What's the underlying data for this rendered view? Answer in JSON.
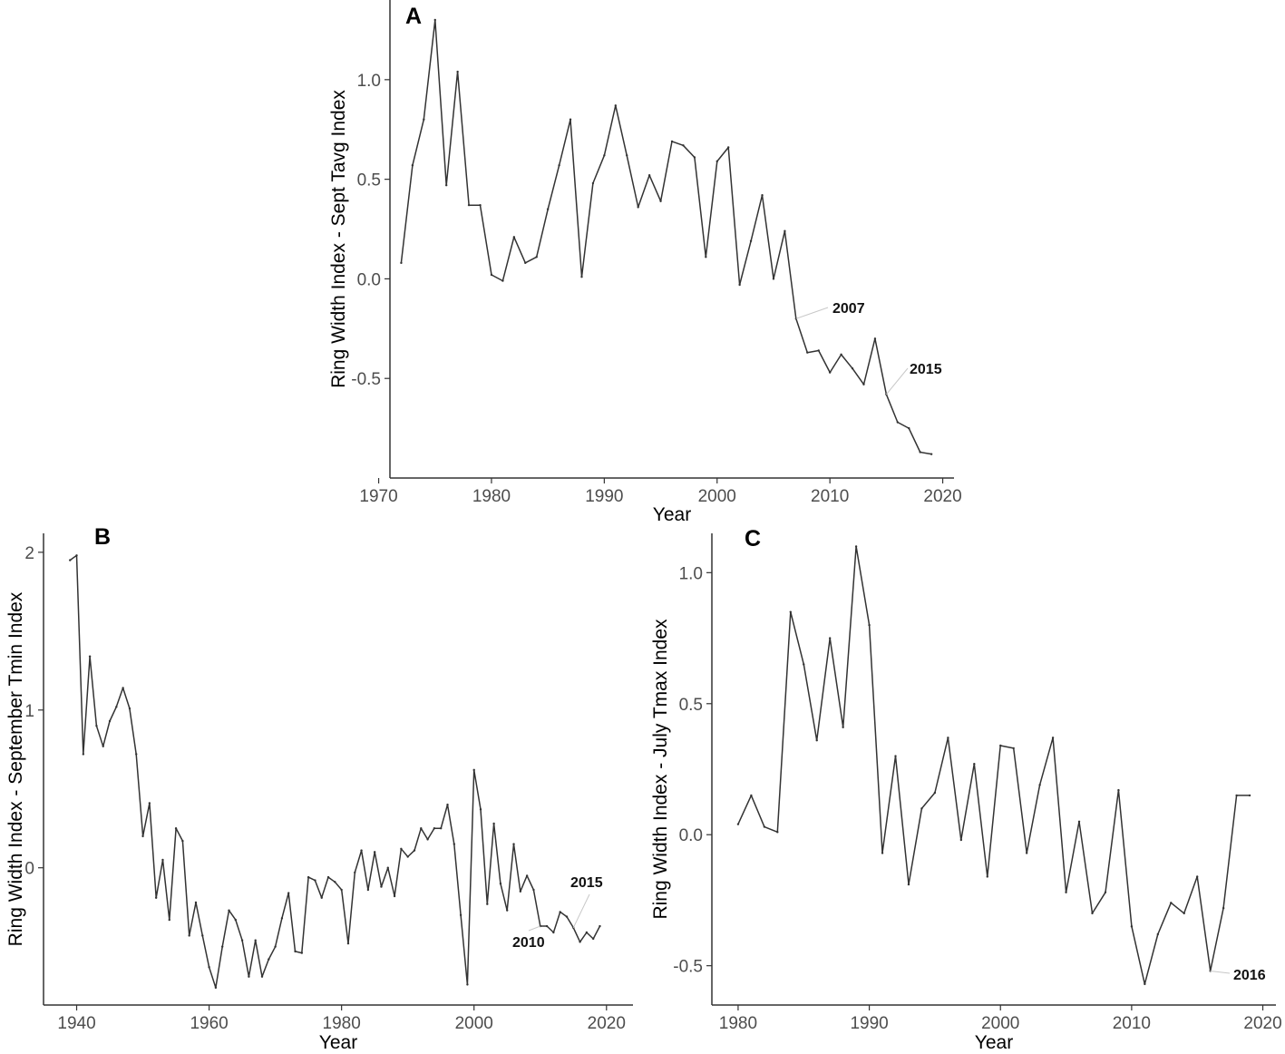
{
  "chart_data": [
    {
      "id": "A",
      "type": "line",
      "panel_label": "A",
      "xlabel": "Year",
      "ylabel": "Ring Width Index - Sept Tavg Index",
      "xlim": [
        1971,
        2021
      ],
      "ylim": [
        -1.0,
        1.4
      ],
      "xticks": [
        1970,
        1980,
        1990,
        2000,
        2010,
        2020
      ],
      "yticks": [
        -0.5,
        0.0,
        0.5,
        1.0
      ],
      "ytick_labels": [
        "-0.5",
        "0.0",
        "0.5",
        "1.0"
      ],
      "grid": false,
      "x": [
        1972,
        1973,
        1974,
        1975,
        1976,
        1977,
        1978,
        1979,
        1980,
        1981,
        1982,
        1983,
        1984,
        1985,
        1986,
        1987,
        1988,
        1989,
        1990,
        1991,
        1992,
        1993,
        1994,
        1995,
        1996,
        1997,
        1998,
        1999,
        2000,
        2001,
        2002,
        2003,
        2004,
        2005,
        2006,
        2007,
        2008,
        2009,
        2010,
        2011,
        2012,
        2013,
        2014,
        2015,
        2016,
        2017,
        2018,
        2019
      ],
      "y": [
        0.08,
        0.57,
        0.8,
        1.3,
        0.47,
        1.04,
        0.37,
        0.37,
        0.02,
        -0.01,
        0.21,
        0.08,
        0.11,
        0.35,
        0.57,
        0.8,
        0.01,
        0.48,
        0.62,
        0.87,
        0.62,
        0.36,
        0.52,
        0.39,
        0.69,
        0.67,
        0.61,
        0.11,
        0.59,
        0.66,
        -0.03,
        0.19,
        0.42,
        0.0,
        0.24,
        -0.2,
        -0.37,
        -0.36,
        -0.47,
        -0.38,
        -0.45,
        -0.53,
        -0.3,
        -0.58,
        -0.72,
        -0.75,
        -0.87,
        -0.88
      ],
      "annotations": [
        {
          "text": "2007",
          "x": 2007,
          "y": -0.2
        },
        {
          "text": "2015",
          "x": 2015,
          "y": -0.58
        }
      ]
    },
    {
      "id": "B",
      "type": "line",
      "panel_label": "B",
      "xlabel": "Year",
      "ylabel": "Ring Width Index - September Tmin Index",
      "xlim": [
        1935,
        2024
      ],
      "ylim": [
        -0.87,
        2.12
      ],
      "xticks": [
        1940,
        1960,
        1980,
        2000,
        2020
      ],
      "yticks": [
        0,
        1,
        2
      ],
      "ytick_labels": [
        "0",
        "1",
        "2"
      ],
      "grid": false,
      "x": [
        1939,
        1940,
        1941,
        1942,
        1943,
        1944,
        1945,
        1946,
        1947,
        1948,
        1949,
        1950,
        1951,
        1952,
        1953,
        1954,
        1955,
        1956,
        1957,
        1958,
        1959,
        1960,
        1961,
        1962,
        1963,
        1964,
        1965,
        1966,
        1967,
        1968,
        1969,
        1970,
        1971,
        1972,
        1973,
        1974,
        1975,
        1976,
        1977,
        1978,
        1979,
        1980,
        1981,
        1982,
        1983,
        1984,
        1985,
        1986,
        1987,
        1988,
        1989,
        1990,
        1991,
        1992,
        1993,
        1994,
        1995,
        1996,
        1997,
        1998,
        1999,
        2000,
        2001,
        2002,
        2003,
        2004,
        2005,
        2006,
        2007,
        2008,
        2009,
        2010,
        2011,
        2012,
        2013,
        2014,
        2015,
        2016,
        2017,
        2018,
        2019
      ],
      "y": [
        1.95,
        1.98,
        0.72,
        1.34,
        0.9,
        0.77,
        0.93,
        1.02,
        1.14,
        1.01,
        0.72,
        0.2,
        0.41,
        -0.19,
        0.05,
        -0.33,
        0.25,
        0.17,
        -0.43,
        -0.22,
        -0.43,
        -0.63,
        -0.76,
        -0.5,
        -0.27,
        -0.33,
        -0.46,
        -0.69,
        -0.46,
        -0.69,
        -0.58,
        -0.5,
        -0.32,
        -0.16,
        -0.53,
        -0.54,
        -0.06,
        -0.08,
        -0.19,
        -0.06,
        -0.09,
        -0.14,
        -0.48,
        -0.03,
        0.11,
        -0.14,
        0.1,
        -0.12,
        0.0,
        -0.18,
        0.12,
        0.07,
        0.11,
        0.25,
        0.18,
        0.25,
        0.25,
        0.4,
        0.15,
        -0.3,
        -0.74,
        0.62,
        0.37,
        -0.23,
        0.28,
        -0.1,
        -0.27,
        0.15,
        -0.15,
        -0.05,
        -0.14,
        -0.37,
        -0.37,
        -0.41,
        -0.28,
        -0.31,
        -0.38,
        -0.47,
        -0.41,
        -0.45,
        -0.37
      ],
      "annotations": [
        {
          "text": "2015",
          "x": 2015,
          "y": -0.38
        },
        {
          "text": "2010",
          "x": 2010,
          "y": -0.37
        }
      ]
    },
    {
      "id": "C",
      "type": "line",
      "panel_label": "C",
      "xlabel": "Year",
      "ylabel": "Ring Width Index - July Tmax Index",
      "xlim": [
        1978,
        2021
      ],
      "ylim": [
        -0.65,
        1.15
      ],
      "xticks": [
        1980,
        1990,
        2000,
        2010,
        2020
      ],
      "yticks": [
        -0.5,
        0.0,
        0.5,
        1.0
      ],
      "ytick_labels": [
        "-0.5",
        "0.0",
        "0.5",
        "1.0"
      ],
      "grid": false,
      "x": [
        1980,
        1981,
        1982,
        1983,
        1984,
        1985,
        1986,
        1987,
        1988,
        1989,
        1990,
        1991,
        1992,
        1993,
        1994,
        1995,
        1996,
        1997,
        1998,
        1999,
        2000,
        2001,
        2002,
        2003,
        2004,
        2005,
        2006,
        2007,
        2008,
        2009,
        2010,
        2011,
        2012,
        2013,
        2014,
        2015,
        2016,
        2017,
        2018,
        2019
      ],
      "y": [
        0.04,
        0.15,
        0.03,
        0.01,
        0.85,
        0.65,
        0.36,
        0.75,
        0.41,
        1.1,
        0.8,
        -0.07,
        0.3,
        -0.19,
        0.1,
        0.16,
        0.37,
        -0.02,
        0.27,
        -0.16,
        0.34,
        0.33,
        -0.07,
        0.19,
        0.37,
        -0.22,
        0.05,
        -0.3,
        -0.22,
        0.17,
        -0.35,
        -0.57,
        -0.38,
        -0.26,
        -0.3,
        -0.16,
        -0.52,
        -0.28,
        0.15,
        0.15
      ],
      "annotations": [
        {
          "text": "2016",
          "x": 2016,
          "y": -0.52
        }
      ]
    }
  ]
}
